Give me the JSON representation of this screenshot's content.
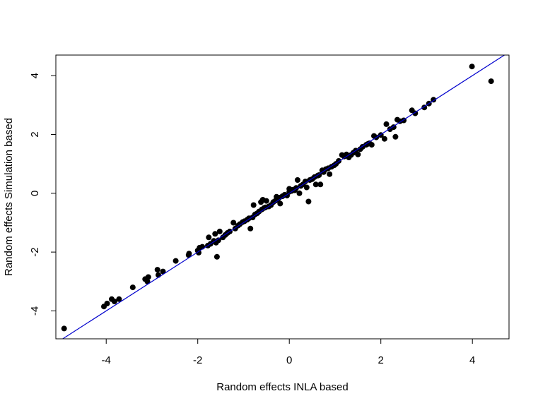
{
  "chart_data": {
    "type": "scatter",
    "title": "",
    "xlabel": "Random effects INLA based",
    "ylabel": "Random effects Simulation based",
    "xlim": [
      -5.1,
      4.8
    ],
    "ylim": [
      -4.95,
      4.7
    ],
    "xticks": [
      -4,
      -2,
      0,
      2,
      4
    ],
    "yticks": [
      -4,
      -2,
      0,
      2,
      4
    ],
    "grid": false,
    "legend": "none",
    "point_color": "#000000",
    "line_color": "#0000cd",
    "reference_line": {
      "intercept": 0,
      "slope": 1
    },
    "points": [
      [
        -4.92,
        -4.6
      ],
      [
        -4.05,
        -3.85
      ],
      [
        -3.98,
        -3.75
      ],
      [
        -3.88,
        -3.6
      ],
      [
        -3.82,
        -3.68
      ],
      [
        -3.72,
        -3.6
      ],
      [
        -3.42,
        -3.2
      ],
      [
        -3.15,
        -2.92
      ],
      [
        -3.08,
        -2.85
      ],
      [
        -3.1,
        -3.0
      ],
      [
        -2.88,
        -2.6
      ],
      [
        -2.86,
        -2.78
      ],
      [
        -2.76,
        -2.66
      ],
      [
        -2.48,
        -2.3
      ],
      [
        -2.2,
        -2.1
      ],
      [
        -2.19,
        -2.05
      ],
      [
        -2.0,
        -1.95
      ],
      [
        -1.98,
        -2.02
      ],
      [
        -1.96,
        -1.85
      ],
      [
        -1.9,
        -1.82
      ],
      [
        -1.78,
        -1.78
      ],
      [
        -1.72,
        -1.72
      ],
      [
        -1.76,
        -1.5
      ],
      [
        -1.65,
        -1.62
      ],
      [
        -1.62,
        -1.38
      ],
      [
        -1.6,
        -1.68
      ],
      [
        -1.58,
        -2.16
      ],
      [
        -1.52,
        -1.3
      ],
      [
        -1.55,
        -1.6
      ],
      [
        -1.45,
        -1.5
      ],
      [
        -1.4,
        -1.42
      ],
      [
        -1.35,
        -1.35
      ],
      [
        -1.3,
        -1.3
      ],
      [
        -1.22,
        -1.0
      ],
      [
        -1.18,
        -1.2
      ],
      [
        -1.12,
        -1.1
      ],
      [
        -1.08,
        -1.05
      ],
      [
        -1.02,
        -0.98
      ],
      [
        -0.98,
        -0.95
      ],
      [
        -0.92,
        -0.9
      ],
      [
        -0.88,
        -0.85
      ],
      [
        -0.85,
        -1.2
      ],
      [
        -0.8,
        -0.82
      ],
      [
        -0.75,
        -0.72
      ],
      [
        -0.78,
        -0.4
      ],
      [
        -0.7,
        -0.68
      ],
      [
        -0.66,
        -0.62
      ],
      [
        -0.62,
        -0.3
      ],
      [
        -0.6,
        -0.55
      ],
      [
        -0.58,
        -0.22
      ],
      [
        -0.55,
        -0.5
      ],
      [
        -0.52,
        -0.48
      ],
      [
        -0.5,
        -0.26
      ],
      [
        -0.45,
        -0.45
      ],
      [
        -0.4,
        -0.4
      ],
      [
        -0.35,
        -0.3
      ],
      [
        -0.3,
        -0.25
      ],
      [
        -0.28,
        -0.12
      ],
      [
        -0.25,
        -0.2
      ],
      [
        -0.22,
        -0.15
      ],
      [
        -0.2,
        -0.35
      ],
      [
        -0.15,
        -0.1
      ],
      [
        -0.1,
        -0.05
      ],
      [
        -0.05,
        -0.08
      ],
      [
        0.0,
        0.05
      ],
      [
        0.0,
        0.15
      ],
      [
        0.05,
        0.08
      ],
      [
        0.08,
        0.12
      ],
      [
        0.12,
        0.1
      ],
      [
        0.15,
        0.18
      ],
      [
        0.18,
        0.45
      ],
      [
        0.22,
        0.0
      ],
      [
        0.25,
        0.25
      ],
      [
        0.3,
        0.3
      ],
      [
        0.35,
        0.4
      ],
      [
        0.38,
        0.2
      ],
      [
        0.42,
        -0.28
      ],
      [
        0.45,
        0.45
      ],
      [
        0.5,
        0.48
      ],
      [
        0.55,
        0.55
      ],
      [
        0.58,
        0.3
      ],
      [
        0.62,
        0.6
      ],
      [
        0.65,
        0.62
      ],
      [
        0.68,
        0.3
      ],
      [
        0.72,
        0.78
      ],
      [
        0.75,
        0.72
      ],
      [
        0.8,
        0.82
      ],
      [
        0.85,
        0.85
      ],
      [
        0.88,
        0.65
      ],
      [
        0.92,
        0.9
      ],
      [
        0.98,
        0.95
      ],
      [
        1.02,
        1.0
      ],
      [
        1.08,
        1.1
      ],
      [
        1.15,
        1.3
      ],
      [
        1.2,
        1.25
      ],
      [
        1.25,
        1.32
      ],
      [
        1.3,
        1.22
      ],
      [
        1.35,
        1.3
      ],
      [
        1.4,
        1.38
      ],
      [
        1.45,
        1.45
      ],
      [
        1.5,
        1.32
      ],
      [
        1.55,
        1.5
      ],
      [
        1.6,
        1.58
      ],
      [
        1.68,
        1.65
      ],
      [
        1.72,
        1.68
      ],
      [
        1.75,
        1.7
      ],
      [
        1.8,
        1.65
      ],
      [
        1.85,
        1.95
      ],
      [
        1.9,
        1.9
      ],
      [
        2.0,
        1.98
      ],
      [
        2.08,
        1.85
      ],
      [
        2.12,
        2.35
      ],
      [
        2.2,
        2.18
      ],
      [
        2.28,
        2.25
      ],
      [
        2.32,
        1.92
      ],
      [
        2.36,
        2.5
      ],
      [
        2.42,
        2.45
      ],
      [
        2.5,
        2.48
      ],
      [
        2.68,
        2.82
      ],
      [
        2.75,
        2.72
      ],
      [
        2.95,
        2.92
      ],
      [
        3.05,
        3.05
      ],
      [
        3.15,
        3.18
      ],
      [
        3.99,
        4.31
      ],
      [
        4.41,
        3.81
      ]
    ]
  }
}
